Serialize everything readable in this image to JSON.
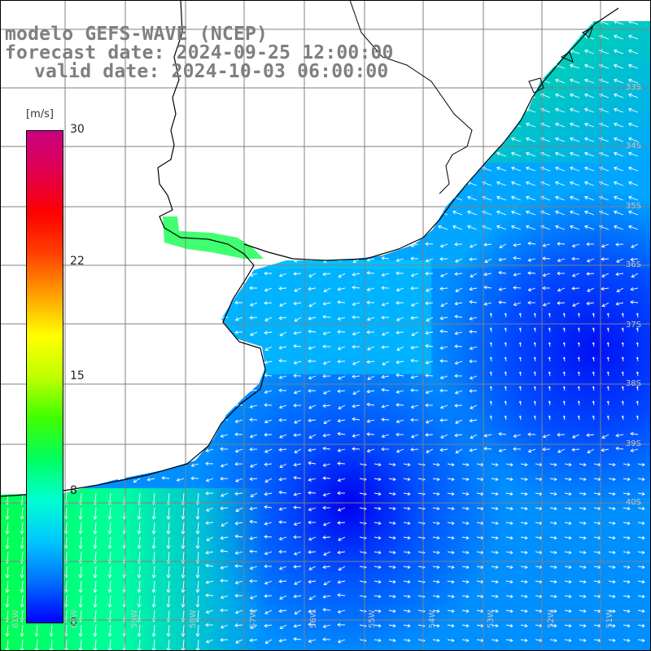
{
  "title": {
    "line1": "modelo GEFS-WAVE (NCEP)",
    "line2": "forecast date: 2024-09-25 12:00:00",
    "line3": "valid date: 2024-10-03 06:00:00"
  },
  "legend": {
    "units": "[m/s]",
    "ticks": [
      {
        "label": "30",
        "value": 30
      },
      {
        "label": "22",
        "value": 22
      },
      {
        "label": "15",
        "value": 15
      },
      {
        "label": "8",
        "value": 8
      },
      {
        "label": "0",
        "value": 0
      }
    ],
    "colors": [
      "#0000ff",
      "#0070ff",
      "#00c8ff",
      "#00ffd0",
      "#00ff60",
      "#40ff00",
      "#c0ff00",
      "#ffff00",
      "#ffa000",
      "#ff4000",
      "#ff0000",
      "#e00050",
      "#c80080"
    ]
  },
  "axes": {
    "lat_labels": [
      "33S",
      "34S",
      "35S",
      "36S",
      "37S",
      "38S",
      "39S",
      "40S"
    ],
    "lon_labels": [
      "61W",
      "60W",
      "59W",
      "58W",
      "57W",
      "56W",
      "55W",
      "54W",
      "53W",
      "52W",
      "51W"
    ]
  },
  "map": {
    "land_color": "#ffffff",
    "coast_color": "#000000",
    "grid_color": "#808080",
    "arrow_color": "#ffffff"
  }
}
